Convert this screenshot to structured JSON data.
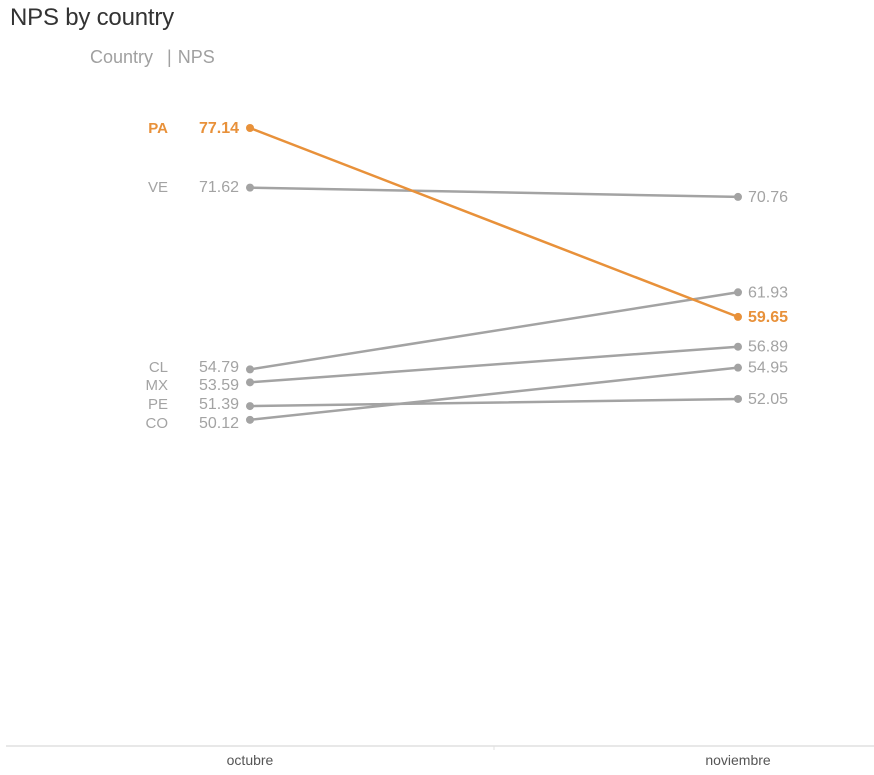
{
  "header": {
    "title": "NPS by country",
    "subtitle_left": "Country",
    "subtitle_separator": "|",
    "subtitle_right": "NPS"
  },
  "colors": {
    "highlight": "#e8913a",
    "muted": "#a3a3a3",
    "axis": "#d0d0d0"
  },
  "chart_data": {
    "type": "line",
    "title": "NPS by country",
    "categories": [
      "octubre",
      "noviembre"
    ],
    "highlight": "PA",
    "series": [
      {
        "name": "PA",
        "values": [
          77.14,
          59.65
        ]
      },
      {
        "name": "VE",
        "values": [
          71.62,
          70.76
        ]
      },
      {
        "name": "CL",
        "values": [
          54.79,
          61.93
        ]
      },
      {
        "name": "MX",
        "values": [
          53.59,
          56.89
        ]
      },
      {
        "name": "PE",
        "values": [
          51.39,
          52.05
        ]
      },
      {
        "name": "CO",
        "values": [
          50.12,
          54.95
        ]
      }
    ],
    "value_labels_left": [
      "77.14",
      "71.62",
      "54.79",
      "53.59",
      "51.39",
      "50.12"
    ],
    "value_labels_right": [
      "59.65",
      "70.76",
      "61.93",
      "56.89",
      "52.05",
      "54.95"
    ],
    "grid": false
  }
}
